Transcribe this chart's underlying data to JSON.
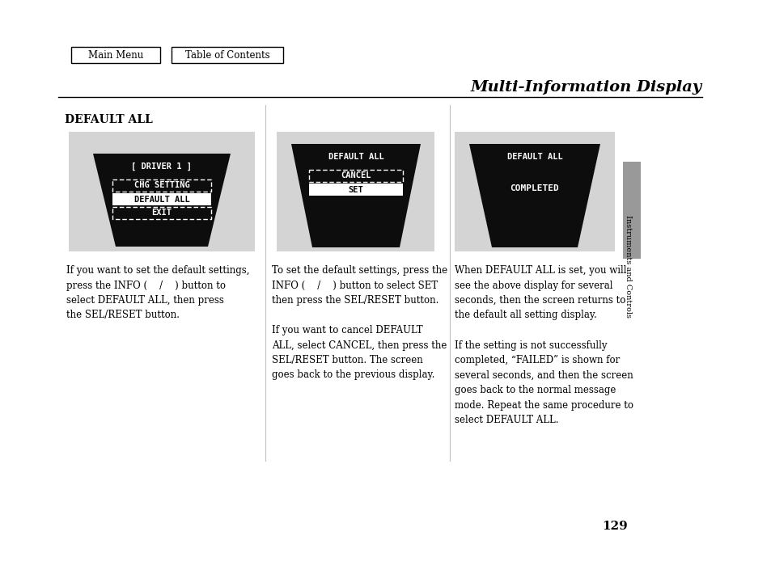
{
  "title": "Multi-Information Display",
  "page_num": "129",
  "section_title": "DEFAULT ALL",
  "bg_color": "#ffffff",
  "nav_buttons": [
    "Main Menu",
    "Table of Contents"
  ],
  "panel_bg": "#d4d4d4",
  "screen_bg": "#0d0d0d",
  "screen_text_color": "#ffffff",
  "sidebar_color": "#999999",
  "sidebar_label": "Instruments and Controls",
  "panel1": {
    "title_text": "[ DRIVER 1 ]",
    "items": [
      {
        "label": "CHG SETTING",
        "style": "dashed"
      },
      {
        "label": "DEFAULT ALL",
        "style": "solid_selected"
      },
      {
        "label": "EXIT",
        "style": "dashed"
      }
    ]
  },
  "panel2": {
    "title_text": "DEFAULT ALL",
    "items": [
      {
        "label": "CANCEL",
        "style": "dashed"
      },
      {
        "label": "SET",
        "style": "solid_selected"
      }
    ]
  },
  "panel3": {
    "title_text": "DEFAULT ALL",
    "items": [
      {
        "label": "COMPLETED",
        "style": "plain"
      }
    ]
  },
  "text1": "If you want to set the default settings,\npress the INFO (    /    ) button to\nselect DEFAULT ALL, then press\nthe SEL/RESET button.",
  "text2": "To set the default settings, press the\nINFO (    /    ) button to select SET\nthen press the SEL/RESET button.\n\nIf you want to cancel DEFAULT\nALL, select CANCEL, then press the\nSEL/RESET button. The screen\ngoes back to the previous display.",
  "text3": "When DEFAULT ALL is set, you will\nsee the above display for several\nseconds, then the screen returns to\nthe default all setting display.\n\nIf the setting is not successfully\ncompleted, “FAILED” is shown for\nseveral seconds, and then the screen\ngoes back to the normal message\nmode. Repeat the same procedure to\nselect DEFAULT ALL."
}
